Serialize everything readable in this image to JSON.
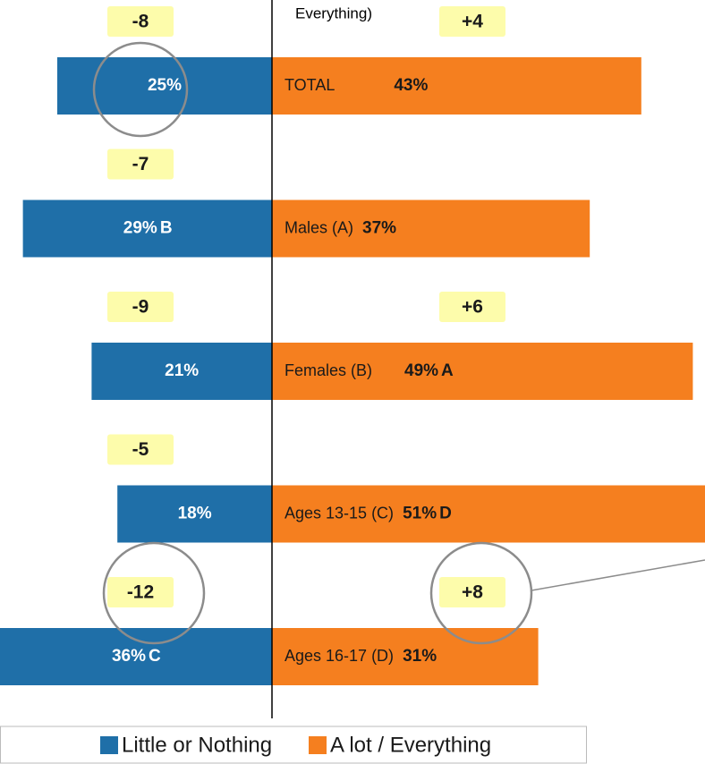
{
  "chart_data": {
    "type": "diverging_bar",
    "annotation": "Everything)",
    "categories": [
      "TOTAL",
      "Males (A)",
      "Females (B)",
      "Ages 13-15 (C)",
      "Ages 16-17 (D)"
    ],
    "series": [
      {
        "name": "Little or Nothing",
        "color": "#1f6fa8",
        "values": [
          25,
          29,
          21,
          18,
          36
        ],
        "value_labels": [
          "25%",
          "29%",
          "21%",
          "18%",
          "36%"
        ],
        "sig_letters": [
          null,
          "B",
          null,
          null,
          "C"
        ],
        "changes": [
          -8,
          -7,
          -9,
          -5,
          -12
        ],
        "change_labels": [
          "-8",
          "-7",
          "-9",
          "-5",
          "-12"
        ]
      },
      {
        "name": "A lot / Everything",
        "color": "#f57f1f",
        "values": [
          43,
          37,
          49,
          51,
          31
        ],
        "value_labels": [
          "43%",
          "37%",
          "49%",
          "51%",
          "31%"
        ],
        "sig_letters": [
          null,
          null,
          "A",
          "D",
          null
        ],
        "changes": [
          4,
          null,
          6,
          null,
          8
        ],
        "change_labels": [
          "+4",
          null,
          "+6",
          null,
          "+8"
        ]
      }
    ]
  }
}
